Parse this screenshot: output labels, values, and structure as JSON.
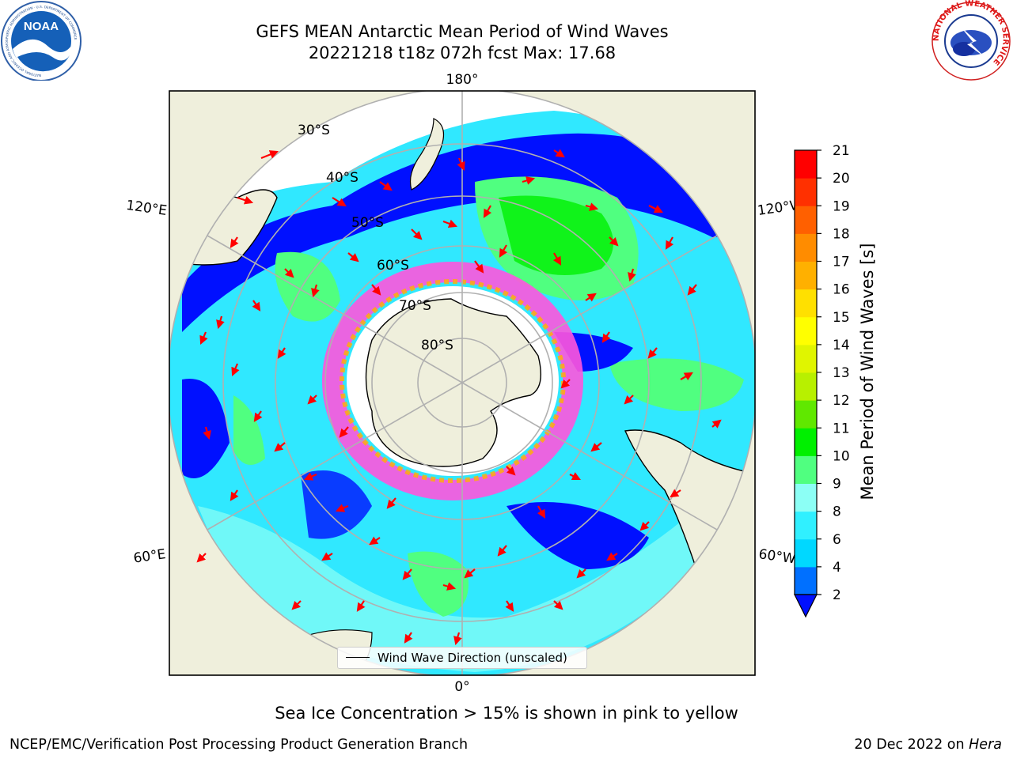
{
  "title": {
    "line1": "GEFS MEAN Antarctic Mean Period of Wind Waves",
    "line2": "20221218 t18z 072h fcst   Max: 17.68"
  },
  "logos": {
    "noaa_text": "NOAA",
    "noaa_ring_text": "NATIONAL OCEANIC AND ATMOSPHERIC ADMINISTRATION · U.S. DEPARTMENT OF COMMERCE",
    "nws_ring_text": "NATIONAL WEATHER SERVICE"
  },
  "map": {
    "projection": "south-polar-stereographic",
    "longitude_labels": {
      "top": "180°",
      "bottom": "0°",
      "upper_left": "120°E",
      "upper_right": "120°W",
      "lower_left": "60°E",
      "lower_right": "60°W"
    },
    "latitude_labels": [
      "30°S",
      "40°S",
      "50°S",
      "60°S",
      "70°S",
      "80°S"
    ],
    "colors": {
      "land": "#efefdc",
      "ocean_low": "#0000ff",
      "sea_ice": "#ff55dd",
      "arrows": "#ff0000",
      "grid": "#b0b0b0"
    }
  },
  "legend": {
    "label": "Wind Wave Direction (unscaled)"
  },
  "colorbar": {
    "label": "Mean Period of Wind Waves [s]",
    "ticks": [
      "2",
      "4",
      "6",
      "8",
      "9",
      "10",
      "11",
      "12",
      "13",
      "14",
      "15",
      "16",
      "17",
      "18",
      "19",
      "20",
      "21"
    ],
    "colors": [
      "#0070ff",
      "#00d8ff",
      "#30f0ff",
      "#8cfff5",
      "#50ff80",
      "#00f000",
      "#60e800",
      "#b8f000",
      "#e0f500",
      "#ffff00",
      "#ffe000",
      "#ffb000",
      "#ff8c00",
      "#ff6000",
      "#ff3000",
      "#ff0000"
    ],
    "extend_color": "#0010ff"
  },
  "note": "Sea Ice Concentration > 15% is shown in pink to yellow",
  "footer": {
    "left": "NCEP/EMC/Verification Post Processing Product Generation Branch",
    "right_prefix": "20 Dec 2022 on ",
    "right_host": "Hera"
  }
}
